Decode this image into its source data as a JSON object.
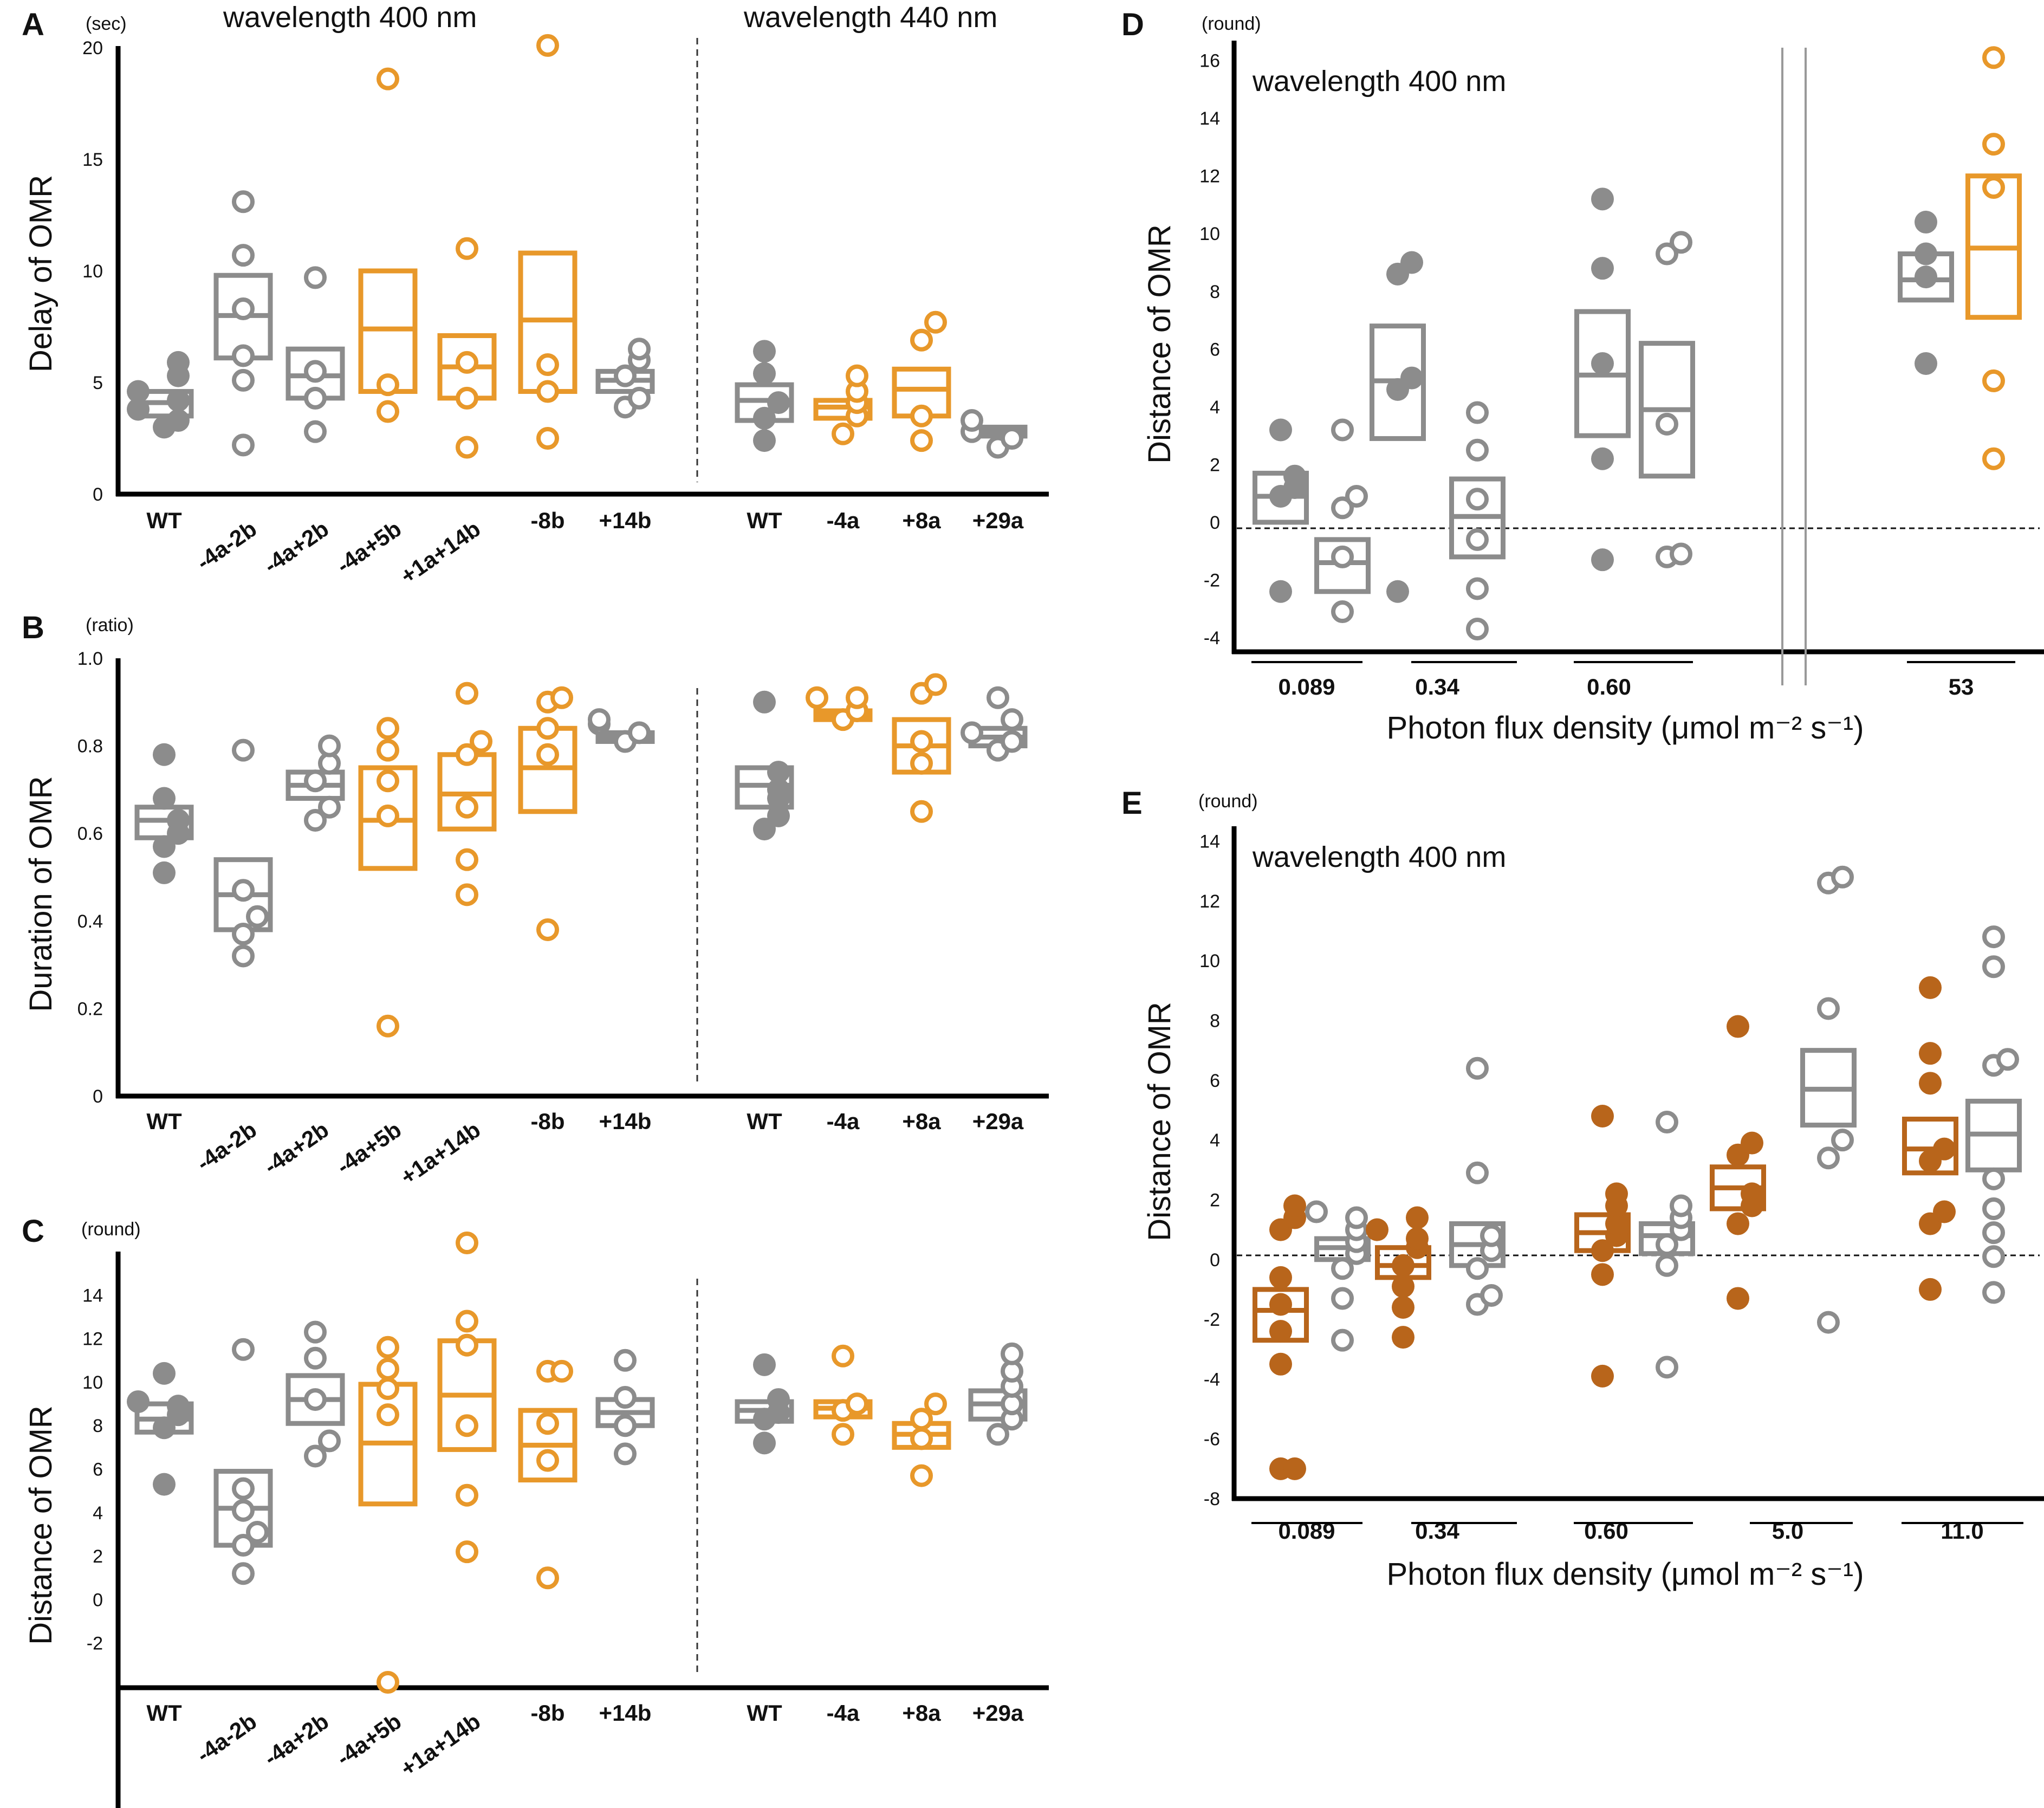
{
  "colors": {
    "gray": "#8c8c8c",
    "orange": "#e8982a",
    "brown": "#b8651b",
    "axis": "#000000"
  },
  "chart_data": [
    {
      "id": "A",
      "type": "scatter",
      "letter": "A",
      "unit": "(sec)",
      "ylabel": "Delay of OMR",
      "ylim": [
        0,
        20
      ],
      "yticks": [
        "0",
        "5",
        "10",
        "15",
        "20"
      ],
      "titles": [
        "wavelength 400 nm",
        "wavelength 440 nm"
      ],
      "categories": [
        "WT",
        "-4a-2b",
        "-4a+2b",
        "-4a+5b",
        "+1a+14b",
        "-8b",
        "+14b",
        "WT",
        "-4a",
        "+8a",
        "+29a"
      ],
      "groups": [
        {
          "color": "gray",
          "filled": true,
          "box": [
            3.5,
            4.1,
            4.6
          ],
          "points": [
            3,
            3.3,
            3.8,
            4.2,
            4.6,
            5.3,
            5.9
          ]
        },
        {
          "color": "gray",
          "filled": false,
          "box": [
            6.1,
            8.0,
            9.8
          ],
          "points": [
            2.2,
            5.1,
            6.2,
            8.3,
            10.7,
            13.1
          ]
        },
        {
          "color": "gray",
          "filled": false,
          "box": [
            4.3,
            5.3,
            6.5
          ],
          "points": [
            2.8,
            4.3,
            5.5,
            9.7
          ]
        },
        {
          "color": "orange",
          "filled": false,
          "box": [
            4.6,
            7.4,
            10.0
          ],
          "points": [
            3.7,
            4.9,
            18.6
          ]
        },
        {
          "color": "orange",
          "filled": false,
          "box": [
            4.3,
            5.7,
            7.1
          ],
          "points": [
            2.1,
            4.3,
            5.9,
            11.0
          ]
        },
        {
          "color": "orange",
          "filled": false,
          "box": [
            4.6,
            7.8,
            10.8
          ],
          "points": [
            2.5,
            4.6,
            5.8,
            20.1
          ]
        },
        {
          "color": "gray",
          "filled": false,
          "box": [
            4.6,
            5.1,
            5.5
          ],
          "points": [
            3.9,
            4.3,
            5.3,
            6.0,
            6.5
          ]
        },
        {
          "color": "gray",
          "filled": true,
          "box": [
            3.3,
            4.2,
            4.9
          ],
          "points": [
            2.4,
            3.4,
            4.1,
            5.4,
            6.4
          ]
        },
        {
          "color": "orange",
          "filled": false,
          "box": [
            3.4,
            3.9,
            4.2
          ],
          "points": [
            2.7,
            3.5,
            4.1,
            4.6,
            5.3
          ]
        },
        {
          "color": "orange",
          "filled": false,
          "box": [
            3.5,
            4.7,
            5.6
          ],
          "points": [
            2.4,
            3.5,
            6.9,
            7.7
          ]
        },
        {
          "color": "gray",
          "filled": false,
          "box": [
            2.6,
            2.8,
            3.0
          ],
          "points": [
            2.1,
            2.5,
            2.8,
            3.3
          ]
        }
      ]
    },
    {
      "id": "B",
      "type": "scatter",
      "letter": "B",
      "unit": "(ratio)",
      "ylabel": "Duration of OMR",
      "ylim": [
        0,
        1.0
      ],
      "yticks": [
        "0",
        "0.2",
        "0.4",
        "0.6",
        "0.8",
        "1.0"
      ],
      "titles": [],
      "categories": [
        "WT",
        "-4a-2b",
        "-4a+2b",
        "-4a+5b",
        "+1a+14b",
        "-8b",
        "+14b",
        "WT",
        "-4a",
        "+8a",
        "+29a"
      ],
      "groups": [
        {
          "color": "gray",
          "filled": true,
          "box": [
            0.59,
            0.63,
            0.66
          ],
          "points": [
            0.51,
            0.57,
            0.6,
            0.63,
            0.68,
            0.78
          ]
        },
        {
          "color": "gray",
          "filled": false,
          "box": [
            0.38,
            0.46,
            0.54
          ],
          "points": [
            0.32,
            0.37,
            0.41,
            0.47,
            0.79
          ]
        },
        {
          "color": "gray",
          "filled": false,
          "box": [
            0.68,
            0.71,
            0.74
          ],
          "points": [
            0.63,
            0.66,
            0.72,
            0.76,
            0.8
          ]
        },
        {
          "color": "orange",
          "filled": false,
          "box": [
            0.52,
            0.63,
            0.75
          ],
          "points": [
            0.16,
            0.64,
            0.72,
            0.79,
            0.84
          ]
        },
        {
          "color": "orange",
          "filled": false,
          "box": [
            0.61,
            0.69,
            0.78
          ],
          "points": [
            0.46,
            0.54,
            0.66,
            0.78,
            0.81,
            0.92
          ]
        },
        {
          "color": "orange",
          "filled": false,
          "box": [
            0.65,
            0.75,
            0.84
          ],
          "points": [
            0.38,
            0.78,
            0.84,
            0.9,
            0.91
          ]
        },
        {
          "color": "gray",
          "filled": false,
          "box": [
            0.81,
            0.82,
            0.83
          ],
          "points": [
            0.81,
            0.83,
            0.85,
            0.86
          ]
        },
        {
          "color": "gray",
          "filled": true,
          "box": [
            0.66,
            0.71,
            0.75
          ],
          "points": [
            0.61,
            0.64,
            0.68,
            0.7,
            0.74,
            0.9
          ]
        },
        {
          "color": "orange",
          "filled": false,
          "box": [
            0.86,
            0.87,
            0.88
          ],
          "points": [
            0.86,
            0.88,
            0.91,
            0.91
          ]
        },
        {
          "color": "orange",
          "filled": false,
          "box": [
            0.74,
            0.8,
            0.86
          ],
          "points": [
            0.65,
            0.76,
            0.81,
            0.92,
            0.94
          ]
        },
        {
          "color": "gray",
          "filled": false,
          "box": [
            0.8,
            0.82,
            0.84
          ],
          "points": [
            0.79,
            0.81,
            0.83,
            0.86,
            0.91
          ]
        }
      ]
    },
    {
      "id": "C",
      "type": "scatter",
      "letter": "C",
      "unit": "(round)",
      "ylabel": "Distance of OMR",
      "ylim": [
        -4,
        16.5
      ],
      "yticks": [
        "-2",
        "0",
        "2",
        "4",
        "6",
        "8",
        "10",
        "12",
        "14"
      ],
      "titles": [],
      "categories": [
        "WT",
        "-4a-2b",
        "-4a+2b",
        "-4a+5b",
        "+1a+14b",
        "-8b",
        "+14b",
        "WT",
        "-4a",
        "+8a",
        "+29a"
      ],
      "groups": [
        {
          "color": "gray",
          "filled": true,
          "box": [
            7.7,
            8.3,
            9.0
          ],
          "points": [
            5.3,
            7.9,
            8.5,
            8.9,
            9.1,
            10.4
          ]
        },
        {
          "color": "gray",
          "filled": false,
          "box": [
            2.5,
            4.2,
            5.9
          ],
          "points": [
            1.2,
            2.5,
            3.1,
            4.1,
            5.1,
            11.5
          ]
        },
        {
          "color": "gray",
          "filled": false,
          "box": [
            8.1,
            9.2,
            10.3
          ],
          "points": [
            6.6,
            7.3,
            9.2,
            11.1,
            12.3
          ]
        },
        {
          "color": "orange",
          "filled": false,
          "box": [
            4.4,
            7.2,
            9.9
          ],
          "points": [
            -3.8,
            8.5,
            9.7,
            10.6,
            11.6
          ]
        },
        {
          "color": "orange",
          "filled": false,
          "box": [
            6.9,
            9.4,
            11.9
          ],
          "points": [
            2.2,
            4.8,
            8.0,
            11.7,
            12.8,
            16.4
          ]
        },
        {
          "color": "orange",
          "filled": false,
          "box": [
            5.5,
            7.1,
            8.7
          ],
          "points": [
            1.0,
            6.4,
            8.1,
            10.5,
            10.5
          ]
        },
        {
          "color": "gray",
          "filled": false,
          "box": [
            8.0,
            8.6,
            9.2
          ],
          "points": [
            6.7,
            8.0,
            9.3,
            11.0
          ]
        },
        {
          "color": "gray",
          "filled": true,
          "box": [
            8.2,
            8.7,
            9.1
          ],
          "points": [
            7.2,
            8.3,
            8.6,
            9.2,
            10.8
          ]
        },
        {
          "color": "orange",
          "filled": false,
          "box": [
            8.4,
            8.8,
            9.1
          ],
          "points": [
            7.6,
            8.7,
            9.0,
            11.2
          ]
        },
        {
          "color": "orange",
          "filled": false,
          "box": [
            7.0,
            7.6,
            8.1
          ],
          "points": [
            5.7,
            7.4,
            8.3,
            9.0
          ]
        },
        {
          "color": "gray",
          "filled": false,
          "box": [
            8.3,
            9.0,
            9.6
          ],
          "points": [
            7.6,
            8.3,
            9.0,
            9.8,
            10.5,
            11.3
          ]
        }
      ]
    },
    {
      "id": "D",
      "type": "scatter",
      "letter": "D",
      "unit": "(round)",
      "ylabel": "Distance of OMR",
      "xlabel": "Photon flux density (μmol m⁻² s⁻¹)",
      "ylim": [
        -4,
        16.5
      ],
      "yticks": [
        "-4",
        "-2",
        "0",
        "2",
        "4",
        "6",
        "8",
        "10",
        "12",
        "14",
        "16"
      ],
      "titles": [
        "wavelength 400 nm"
      ],
      "categories": [
        "0.089",
        "0.34",
        "0.60",
        "53"
      ],
      "groups": [
        {
          "color": "gray",
          "filled": true,
          "box": [
            0.0,
            0.9,
            1.7
          ],
          "points": [
            -2.4,
            0.9,
            1.2,
            1.6,
            3.2
          ]
        },
        {
          "color": "gray",
          "filled": false,
          "box": [
            -2.4,
            -1.4,
            -0.6
          ],
          "points": [
            -3.1,
            -1.2,
            0.5,
            0.9,
            3.2
          ]
        },
        {
          "color": "gray",
          "filled": true,
          "box": [
            2.9,
            4.9,
            6.8
          ],
          "points": [
            -2.4,
            4.6,
            5.0,
            8.6,
            9.0
          ]
        },
        {
          "color": "gray",
          "filled": false,
          "box": [
            -1.2,
            0.2,
            1.5
          ],
          "points": [
            -3.7,
            -2.3,
            -0.6,
            0.8,
            2.5,
            3.8
          ]
        },
        {
          "color": "gray",
          "filled": true,
          "box": [
            3.0,
            5.1,
            7.3
          ],
          "points": [
            -1.3,
            2.2,
            5.5,
            8.8,
            11.2
          ]
        },
        {
          "color": "gray",
          "filled": false,
          "box": [
            1.6,
            3.9,
            6.2
          ],
          "points": [
            -1.2,
            -1.1,
            3.4,
            9.3,
            9.7
          ]
        },
        {
          "color": "gray",
          "filled": true,
          "box": [
            7.7,
            8.4,
            9.3
          ],
          "points": [
            5.5,
            8.5,
            9.3,
            10.4
          ]
        },
        {
          "color": "orange",
          "filled": false,
          "box": [
            7.1,
            9.5,
            12.0
          ],
          "points": [
            2.2,
            4.9,
            11.6,
            13.1,
            16.1
          ]
        }
      ]
    },
    {
      "id": "E",
      "type": "scatter",
      "letter": "E",
      "unit": "(round)",
      "ylabel": "Distance of OMR",
      "xlabel": "Photon flux density (μmol m⁻² s⁻¹)",
      "ylim": [
        -8,
        14.5
      ],
      "yticks": [
        "-8",
        "-6",
        "-4",
        "-2",
        "0",
        "2",
        "4",
        "6",
        "8",
        "10",
        "12",
        "14"
      ],
      "titles": [
        "wavelength 400 nm"
      ],
      "categories": [
        "0.089",
        "0.34",
        "0.60",
        "5.0",
        "11.0"
      ],
      "groups": [
        {
          "color": "brown",
          "filled": true,
          "box": [
            -2.7,
            -1.7,
            -1.0
          ],
          "points": [
            -7.0,
            -7.0,
            -3.5,
            -2.4,
            -1.5,
            -0.6,
            1.0,
            1.4,
            1.8
          ]
        },
        {
          "color": "gray",
          "filled": false,
          "box": [
            0.0,
            0.4,
            0.7
          ],
          "points": [
            -2.7,
            -1.3,
            -0.3,
            0.2,
            0.6,
            1.0,
            1.4,
            1.6
          ]
        },
        {
          "color": "brown",
          "filled": true,
          "box": [
            -0.6,
            -0.2,
            0.4
          ],
          "points": [
            -2.6,
            -1.6,
            -0.9,
            -0.2,
            0.4,
            0.7,
            1.0,
            1.4
          ]
        },
        {
          "color": "gray",
          "filled": false,
          "box": [
            -0.2,
            0.5,
            1.2
          ],
          "points": [
            -1.5,
            -1.2,
            -0.3,
            0.3,
            0.8,
            2.9,
            6.4
          ]
        },
        {
          "color": "brown",
          "filled": true,
          "box": [
            0.3,
            0.9,
            1.5
          ],
          "points": [
            -3.9,
            -0.5,
            0.3,
            0.8,
            1.2,
            1.8,
            2.2,
            4.8
          ]
        },
        {
          "color": "gray",
          "filled": false,
          "box": [
            0.2,
            0.8,
            1.2
          ],
          "points": [
            -3.6,
            -0.2,
            0.5,
            1.0,
            1.4,
            1.8,
            4.6
          ]
        },
        {
          "color": "brown",
          "filled": true,
          "box": [
            1.7,
            2.4,
            3.1
          ],
          "points": [
            -1.3,
            1.2,
            1.8,
            2.2,
            3.5,
            3.9,
            7.8
          ]
        },
        {
          "color": "gray",
          "filled": false,
          "box": [
            4.5,
            5.7,
            7.0
          ],
          "points": [
            -2.1,
            3.4,
            4.0,
            8.4,
            12.6,
            12.8
          ]
        },
        {
          "color": "brown",
          "filled": true,
          "box": [
            2.9,
            3.7,
            4.7
          ],
          "points": [
            -1.0,
            1.2,
            1.6,
            3.3,
            3.7,
            5.9,
            6.9,
            9.1
          ]
        },
        {
          "color": "gray",
          "filled": false,
          "box": [
            3.0,
            4.2,
            5.3
          ],
          "points": [
            -1.1,
            0.1,
            0.9,
            1.7,
            2.7,
            6.5,
            6.7,
            9.8,
            10.8
          ]
        }
      ]
    }
  ]
}
